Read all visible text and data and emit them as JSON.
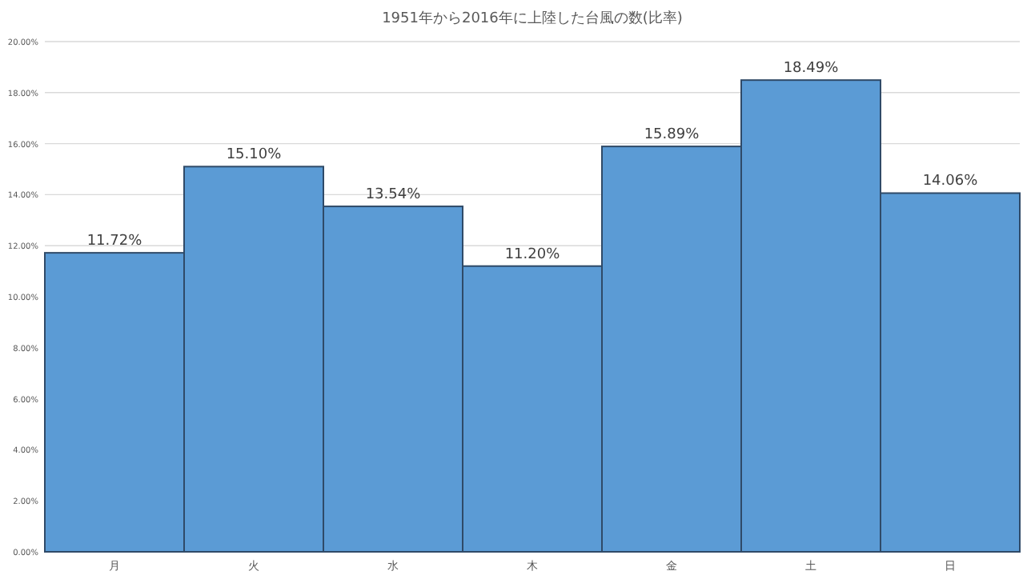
{
  "chart_data": {
    "type": "bar",
    "title": "1951年から2016年に上陸した台風の数(比率)",
    "categories": [
      "月",
      "火",
      "水",
      "木",
      "金",
      "土",
      "日"
    ],
    "values": [
      11.72,
      15.1,
      13.54,
      11.2,
      15.89,
      18.49,
      14.06
    ],
    "value_labels": [
      "11.72%",
      "15.10%",
      "13.54%",
      "11.20%",
      "15.89%",
      "18.49%",
      "14.06%"
    ],
    "color": "#5b9bd5",
    "ylim": [
      0,
      20
    ],
    "yticks": [
      {
        "value": 0,
        "label": "0.00%"
      },
      {
        "value": 2,
        "label": "2.00%"
      },
      {
        "value": 4,
        "label": "4.00%"
      },
      {
        "value": 6,
        "label": "6.00%"
      },
      {
        "value": 8,
        "label": "8.00%"
      },
      {
        "value": 10,
        "label": "10.00%"
      },
      {
        "value": 12,
        "label": "12.00%"
      },
      {
        "value": 14,
        "label": "14.00%"
      },
      {
        "value": 16,
        "label": "16.00%"
      },
      {
        "value": 18,
        "label": "18.00%"
      },
      {
        "value": 20,
        "label": "20.00%"
      }
    ],
    "grid": "y"
  }
}
